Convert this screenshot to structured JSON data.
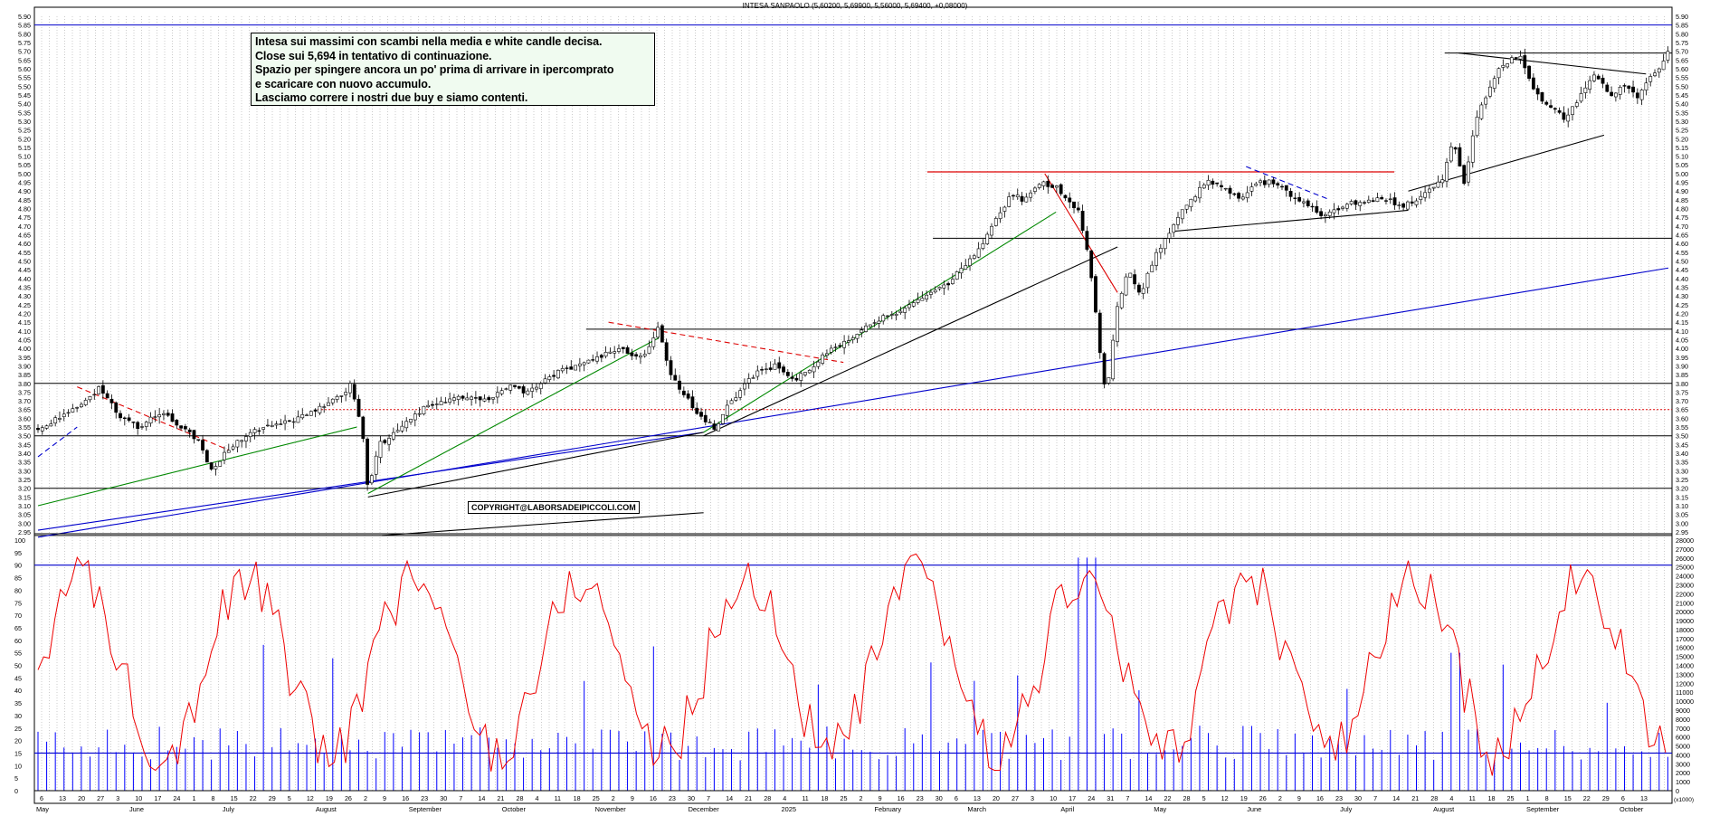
{
  "chart_data": [
    {
      "type": "candlestick",
      "title": "INTESA SANPAOLO (5,60200, 5,69900, 5,56000, 5,69400, +0,08000)",
      "ylim": [
        2.95,
        5.9
      ],
      "y_ticks": [
        "5.90",
        "5.85",
        "5.80",
        "5.75",
        "5.70",
        "5.65",
        "5.60",
        "5.55",
        "5.50",
        "5.45",
        "5.40",
        "5.35",
        "5.30",
        "5.25",
        "5.20",
        "5.15",
        "5.10",
        "5.05",
        "5.00",
        "4.95",
        "4.90",
        "4.85",
        "4.80",
        "4.75",
        "4.70",
        "4.65",
        "4.60",
        "4.55",
        "4.50",
        "4.45",
        "4.40",
        "4.35",
        "4.30",
        "4.25",
        "4.20",
        "4.15",
        "4.10",
        "4.05",
        "4.00",
        "3.95",
        "3.90",
        "3.85",
        "3.80",
        "3.75",
        "3.70",
        "3.65",
        "3.60",
        "3.55",
        "3.50",
        "3.45",
        "3.40",
        "3.35",
        "3.30",
        "3.25",
        "3.20",
        "3.15",
        "3.10",
        "3.05",
        "3.00",
        "2.95"
      ],
      "close_path": [
        [
          0,
          3.55
        ],
        [
          8,
          3.6
        ],
        [
          16,
          3.68
        ],
        [
          22,
          3.78
        ],
        [
          30,
          3.6
        ],
        [
          36,
          3.55
        ],
        [
          44,
          3.63
        ],
        [
          52,
          3.55
        ],
        [
          58,
          3.45
        ],
        [
          62,
          3.3
        ],
        [
          68,
          3.42
        ],
        [
          74,
          3.5
        ],
        [
          80,
          3.55
        ],
        [
          90,
          3.58
        ],
        [
          100,
          3.65
        ],
        [
          108,
          3.72
        ],
        [
          112,
          3.8
        ],
        [
          116,
          3.52
        ],
        [
          118,
          3.18
        ],
        [
          122,
          3.45
        ],
        [
          126,
          3.5
        ],
        [
          132,
          3.58
        ],
        [
          140,
          3.68
        ],
        [
          150,
          3.72
        ],
        [
          160,
          3.7
        ],
        [
          168,
          3.78
        ],
        [
          176,
          3.75
        ],
        [
          184,
          3.85
        ],
        [
          192,
          3.9
        ],
        [
          200,
          3.95
        ],
        [
          208,
          4.0
        ],
        [
          216,
          3.95
        ],
        [
          222,
          4.12
        ],
        [
          226,
          3.85
        ],
        [
          232,
          3.72
        ],
        [
          238,
          3.58
        ],
        [
          242,
          3.55
        ],
        [
          248,
          3.7
        ],
        [
          256,
          3.85
        ],
        [
          264,
          3.9
        ],
        [
          270,
          3.82
        ],
        [
          276,
          3.88
        ],
        [
          282,
          3.98
        ],
        [
          290,
          4.05
        ],
        [
          298,
          4.15
        ],
        [
          306,
          4.2
        ],
        [
          316,
          4.28
        ],
        [
          324,
          4.35
        ],
        [
          330,
          4.45
        ],
        [
          336,
          4.55
        ],
        [
          342,
          4.72
        ],
        [
          348,
          4.88
        ],
        [
          352,
          4.85
        ],
        [
          358,
          4.95
        ],
        [
          364,
          4.92
        ],
        [
          368,
          4.85
        ],
        [
          372,
          4.78
        ],
        [
          376,
          4.5
        ],
        [
          380,
          3.95
        ],
        [
          382,
          3.72
        ],
        [
          386,
          4.25
        ],
        [
          390,
          4.45
        ],
        [
          394,
          4.3
        ],
        [
          400,
          4.55
        ],
        [
          406,
          4.7
        ],
        [
          412,
          4.85
        ],
        [
          418,
          4.95
        ],
        [
          424,
          4.92
        ],
        [
          430,
          4.85
        ],
        [
          436,
          4.95
        ],
        [
          442,
          4.95
        ],
        [
          448,
          4.88
        ],
        [
          454,
          4.82
        ],
        [
          460,
          4.76
        ],
        [
          468,
          4.82
        ],
        [
          476,
          4.85
        ],
        [
          482,
          4.85
        ],
        [
          488,
          4.82
        ],
        [
          494,
          4.85
        ],
        [
          502,
          4.96
        ],
        [
          506,
          5.2
        ],
        [
          510,
          4.95
        ],
        [
          514,
          5.3
        ],
        [
          518,
          5.45
        ],
        [
          522,
          5.6
        ],
        [
          526,
          5.65
        ],
        [
          530,
          5.68
        ],
        [
          534,
          5.5
        ],
        [
          540,
          5.38
        ],
        [
          546,
          5.32
        ],
        [
          552,
          5.45
        ],
        [
          556,
          5.58
        ],
        [
          562,
          5.45
        ],
        [
          568,
          5.5
        ],
        [
          572,
          5.42
        ],
        [
          576,
          5.55
        ],
        [
          580,
          5.6
        ],
        [
          582,
          5.69
        ]
      ],
      "volume_axis_ticks": [
        "28000",
        "27000",
        "26000",
        "25000",
        "24000",
        "23000",
        "22000",
        "21000",
        "20000",
        "19000",
        "18000",
        "17000",
        "16000",
        "15000",
        "14000",
        "13000",
        "12000",
        "11000",
        "10000",
        "9000",
        "8000",
        "7000",
        "6000",
        "5000",
        "4000",
        "3000",
        "2000",
        "1000",
        "0"
      ],
      "volume_axis_label": "(x1000)",
      "oscillator_ticks": [
        "100",
        "95",
        "90",
        "85",
        "80",
        "75",
        "70",
        "65",
        "60",
        "55",
        "50",
        "45",
        "40",
        "35",
        "30",
        "25",
        "20",
        "15",
        "10",
        "5",
        "0"
      ],
      "oscillator_levels": [
        15,
        90
      ],
      "x_month_labels": [
        "May",
        "June",
        "July",
        "August",
        "September",
        "October",
        "November",
        "December",
        "2025",
        "February",
        "March",
        "April",
        "May",
        "June",
        "July",
        "August",
        "September",
        "October"
      ],
      "x_day_labels": [
        "6",
        "13",
        "20",
        "27",
        "3",
        "10",
        "17",
        "24",
        "1",
        "8",
        "15",
        "22",
        "29",
        "5",
        "12",
        "19",
        "26",
        "2",
        "9",
        "16",
        "23",
        "30",
        "7",
        "14",
        "21",
        "28",
        "4",
        "11",
        "18",
        "25",
        "2",
        "9",
        "16",
        "23",
        "30",
        "7",
        "14",
        "21",
        "28",
        "4",
        "11",
        "18",
        "25",
        "2",
        "9",
        "16",
        "23",
        "30",
        "6",
        "13",
        "20",
        "27",
        "3",
        "10",
        "17",
        "24",
        "31",
        "7",
        "14",
        "22",
        "28",
        "5",
        "12",
        "19",
        "26",
        "2",
        "9",
        "16",
        "23",
        "30",
        "7",
        "14",
        "21",
        "28",
        "4",
        "11",
        "18",
        "25",
        "1",
        "8",
        "15",
        "22",
        "29",
        "6",
        "13"
      ],
      "horizontal_levels": [
        5.85,
        5.69,
        4.63,
        4.11,
        3.8,
        3.65,
        3.5,
        3.2,
        2.93
      ],
      "colors": {
        "candle": "#000000",
        "support": "#000000",
        "trend_blue": "#0000cc",
        "trend_green": "#008800",
        "resistance_red": "#dd0000",
        "oscillator": "#ee0000",
        "volume": "#0000ff"
      }
    }
  ],
  "annotation": {
    "lines": [
      "Intesa sui massimi con scambi nella media e white candle decisa.",
      "Close sui 5,694 in tentativo di continuazione.",
      "Spazio per spingere ancora un po' prima di arrivare in ipercomprato",
      "e scaricare con nuovo accumulo.",
      "Lasciamo correre i nostri due buy e siamo contenti."
    ]
  },
  "copyright": "COPYRIGHT@LABORSADEIPICCOLI.COM"
}
